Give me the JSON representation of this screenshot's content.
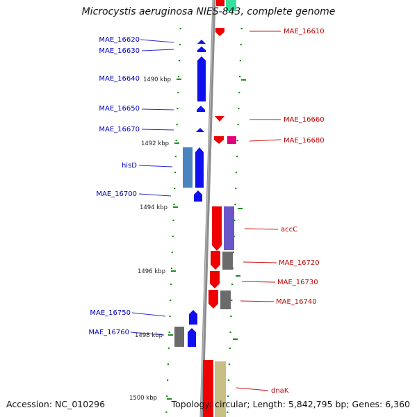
{
  "title": "Microcystis aeruginosa NIES-843, complete genome",
  "footer": {
    "accession": "Accession: NC_010296",
    "topology": "Topology: circular; Length: 5,842,795 bp; Genes: 6,360"
  },
  "ruler": [
    "1490 kbp",
    "1492 kbp",
    "1494 kbp",
    "1496 kbp",
    "1498 kbp",
    "1500 kbp"
  ],
  "colors": {
    "forward_gene": "#0000ee",
    "reverse_gene": "#ee0000",
    "label_forward": "#0000c0",
    "label_reverse": "#c00000",
    "rna": "#e0007a",
    "cog_teal": "#4a84c0",
    "cog_purple": "#6a56c8",
    "cog_gray": "#6b6b6b",
    "cog_khaki": "#c8bd83",
    "cog_mint": "#38e0a0",
    "backbone": "#8c8c8c",
    "tick": "#1b8c1b"
  },
  "forward_labels": [
    "MAE_16620",
    "MAE_16630",
    "MAE_16640",
    "MAE_16650",
    "MAE_16670",
    "hisD",
    "MAE_16700",
    "MAE_16750",
    "MAE_16760"
  ],
  "reverse_labels": [
    "MAE_16610",
    "MAE_16660",
    "MAE_16680",
    "accC",
    "MAE_16720",
    "MAE_16730",
    "MAE_16740",
    "dnaK"
  ]
}
